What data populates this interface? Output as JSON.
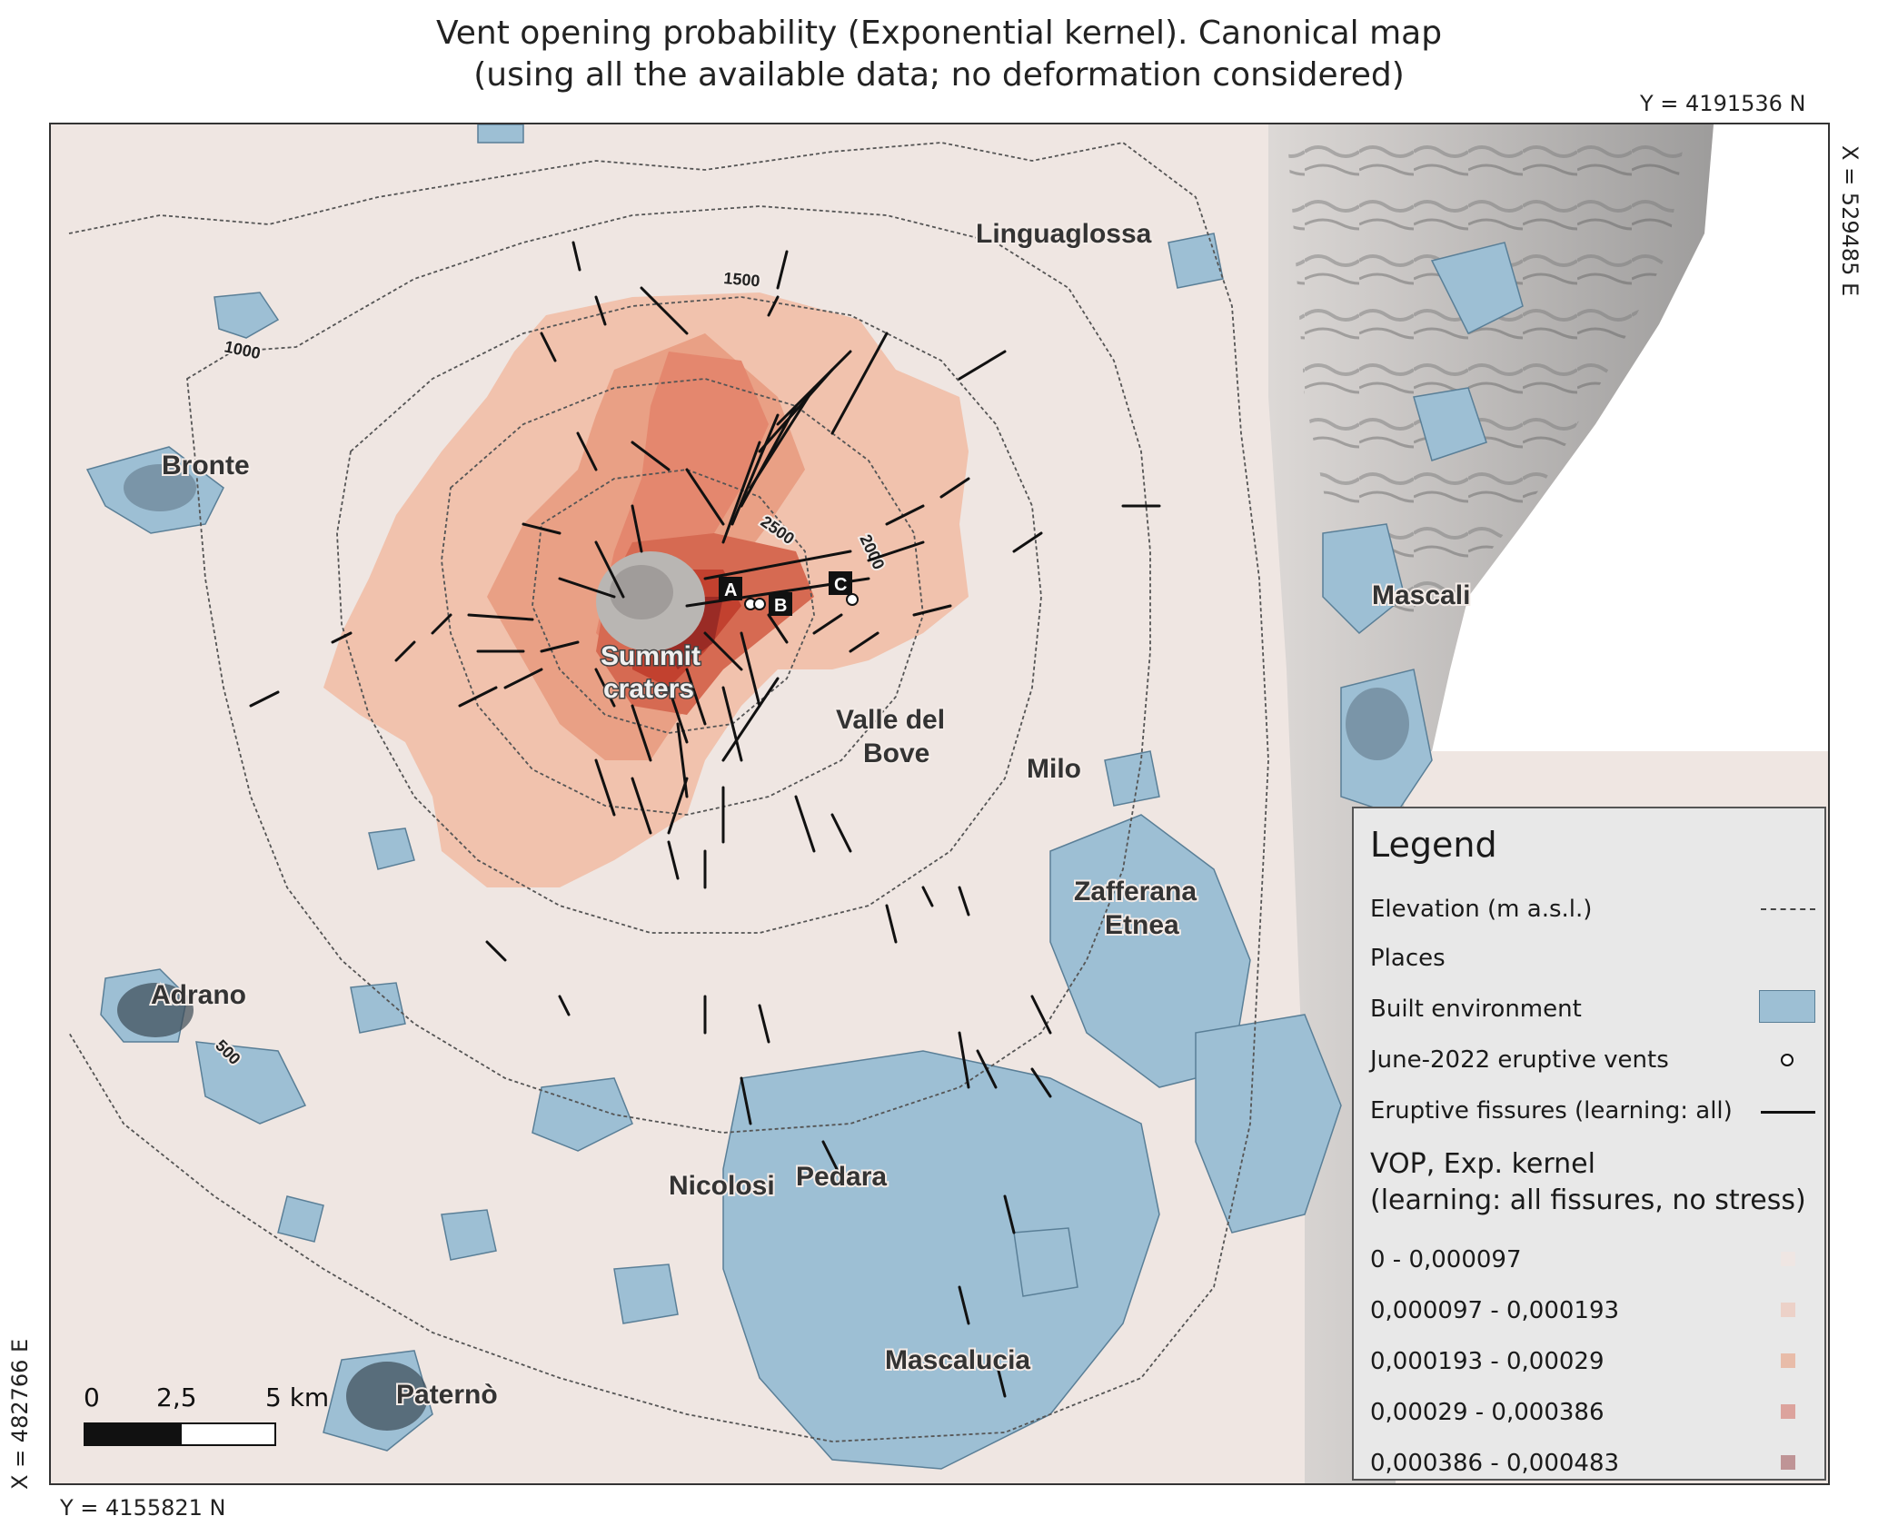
{
  "title": {
    "line1": "Vent opening probability (Exponential kernel).  Canonical map",
    "line2": "(using all the available data; no deformation considered)"
  },
  "coords": {
    "top_right": "Y = 4191536 N",
    "right_vertical": "X = 529485 E",
    "left_vertical": "X = 482766 E",
    "bottom_left": "Y = 4155821 N"
  },
  "places": {
    "linguaglossa": "Linguaglossa",
    "bronte": "Bronte",
    "mascali": "Mascali",
    "summit_1": "Summit",
    "summit_2": "craters",
    "valle_1": "Valle del",
    "valle_2": "Bove",
    "milo": "Milo",
    "zafferana_1": "Zafferana",
    "zafferana_2": "Etnea",
    "adrano": "Adrano",
    "nicolosi": "Nicolosi",
    "pedara": "Pedara",
    "mascalucia": "Mascalucia",
    "paterno": "Paternò"
  },
  "craters": {
    "a": "A",
    "b": "B",
    "c": "C"
  },
  "elevation_labels": {
    "e500": "500",
    "e1000": "1000",
    "e1500": "1500",
    "e2000": "2000",
    "e2500": "2500"
  },
  "scale": {
    "l0": "0",
    "l1": "2,5",
    "l2": "5 km"
  },
  "legend": {
    "title": "Legend",
    "elevation": "Elevation (m a.s.l.)",
    "places": "Places",
    "built": "Built environment",
    "vents": "June-2022 eruptive vents",
    "fissures": "Eruptive fissures (learning: all)",
    "vop_1": "VOP, Exp. kernel",
    "vop_2": "(learning: all fissures, no stress)",
    "classes": [
      {
        "label": "0 - 0,000097",
        "color": "#efe6e3"
      },
      {
        "label": "0,000097 - 0,000193",
        "color": "#ecd1c8"
      },
      {
        "label": "0,000193 - 0,00029",
        "color": "#e8bca9"
      },
      {
        "label": "0,00029 - 0,000386",
        "color": "#dca39d"
      },
      {
        "label": "0,000386 - 0,000483",
        "color": "#bf9496"
      }
    ],
    "colors": {
      "built": "#9dbfd4",
      "vop_low": "#f0c0aa",
      "vop_mid": "#e4876e",
      "vop_high": "#c2412f",
      "vop_max": "#9a2b25"
    }
  }
}
